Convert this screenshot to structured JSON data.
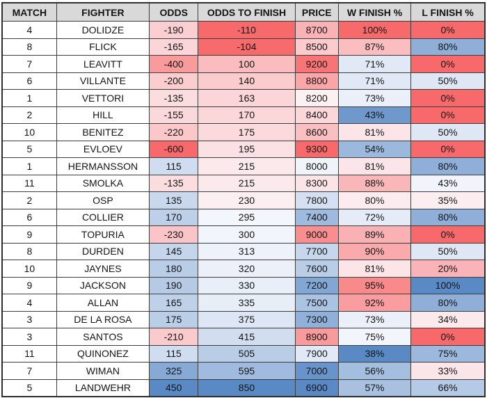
{
  "colors": {
    "header_bg": "#D9D9D9",
    "grid_border": "#3C3C3C",
    "text": "#141414",
    "page_bg": "#FFFFFF"
  },
  "chart_data": {
    "type": "table",
    "title": "",
    "columns": [
      {
        "key": "match",
        "label": "MATCH"
      },
      {
        "key": "fighter",
        "label": "FIGHTER"
      },
      {
        "key": "odds",
        "label": "ODDS"
      },
      {
        "key": "odds_to_finish",
        "label": "ODDS TO FINISH"
      },
      {
        "key": "price",
        "label": "PRICE"
      },
      {
        "key": "w_finish_pct",
        "label": "W FINISH %"
      },
      {
        "key": "l_finish_pct",
        "label": "L FINISH %"
      }
    ],
    "rows": [
      {
        "match": "4",
        "fighter": "DOLIDZE",
        "odds": "-190",
        "odds_to_finish": "-110",
        "price": "8700",
        "w_finish_pct": "100%",
        "l_finish_pct": "0%"
      },
      {
        "match": "8",
        "fighter": "FLICK",
        "odds": "-165",
        "odds_to_finish": "-104",
        "price": "8500",
        "w_finish_pct": "87%",
        "l_finish_pct": "80%"
      },
      {
        "match": "7",
        "fighter": "LEAVITT",
        "odds": "-400",
        "odds_to_finish": "100",
        "price": "9200",
        "w_finish_pct": "71%",
        "l_finish_pct": "0%"
      },
      {
        "match": "6",
        "fighter": "VILLANTE",
        "odds": "-200",
        "odds_to_finish": "140",
        "price": "8800",
        "w_finish_pct": "71%",
        "l_finish_pct": "50%"
      },
      {
        "match": "1",
        "fighter": "VETTORI",
        "odds": "-135",
        "odds_to_finish": "163",
        "price": "8200",
        "w_finish_pct": "73%",
        "l_finish_pct": "0%"
      },
      {
        "match": "2",
        "fighter": "HILL",
        "odds": "-155",
        "odds_to_finish": "170",
        "price": "8400",
        "w_finish_pct": "43%",
        "l_finish_pct": "0%"
      },
      {
        "match": "10",
        "fighter": "BENITEZ",
        "odds": "-220",
        "odds_to_finish": "175",
        "price": "8600",
        "w_finish_pct": "81%",
        "l_finish_pct": "50%"
      },
      {
        "match": "5",
        "fighter": "EVLOEV",
        "odds": "-600",
        "odds_to_finish": "195",
        "price": "9300",
        "w_finish_pct": "54%",
        "l_finish_pct": "0%"
      },
      {
        "match": "1",
        "fighter": "HERMANSSON",
        "odds": "115",
        "odds_to_finish": "215",
        "price": "8000",
        "w_finish_pct": "81%",
        "l_finish_pct": "80%"
      },
      {
        "match": "11",
        "fighter": "SMOLKA",
        "odds": "-135",
        "odds_to_finish": "215",
        "price": "8300",
        "w_finish_pct": "88%",
        "l_finish_pct": "43%"
      },
      {
        "match": "2",
        "fighter": "OSP",
        "odds": "135",
        "odds_to_finish": "230",
        "price": "7800",
        "w_finish_pct": "80%",
        "l_finish_pct": "35%"
      },
      {
        "match": "6",
        "fighter": "COLLIER",
        "odds": "170",
        "odds_to_finish": "295",
        "price": "7400",
        "w_finish_pct": "72%",
        "l_finish_pct": "80%"
      },
      {
        "match": "9",
        "fighter": "TOPURIA",
        "odds": "-230",
        "odds_to_finish": "300",
        "price": "9000",
        "w_finish_pct": "89%",
        "l_finish_pct": "0%"
      },
      {
        "match": "8",
        "fighter": "DURDEN",
        "odds": "145",
        "odds_to_finish": "313",
        "price": "7700",
        "w_finish_pct": "90%",
        "l_finish_pct": "50%"
      },
      {
        "match": "10",
        "fighter": "JAYNES",
        "odds": "180",
        "odds_to_finish": "320",
        "price": "7600",
        "w_finish_pct": "81%",
        "l_finish_pct": "20%"
      },
      {
        "match": "9",
        "fighter": "JACKSON",
        "odds": "190",
        "odds_to_finish": "330",
        "price": "7200",
        "w_finish_pct": "95%",
        "l_finish_pct": "100%"
      },
      {
        "match": "4",
        "fighter": "ALLAN",
        "odds": "165",
        "odds_to_finish": "335",
        "price": "7500",
        "w_finish_pct": "92%",
        "l_finish_pct": "80%"
      },
      {
        "match": "3",
        "fighter": "DE LA ROSA",
        "odds": "175",
        "odds_to_finish": "375",
        "price": "7300",
        "w_finish_pct": "73%",
        "l_finish_pct": "34%"
      },
      {
        "match": "3",
        "fighter": "SANTOS",
        "odds": "-210",
        "odds_to_finish": "415",
        "price": "8900",
        "w_finish_pct": "75%",
        "l_finish_pct": "0%"
      },
      {
        "match": "11",
        "fighter": "QUINONEZ",
        "odds": "115",
        "odds_to_finish": "505",
        "price": "7900",
        "w_finish_pct": "38%",
        "l_finish_pct": "75%"
      },
      {
        "match": "7",
        "fighter": "WIMAN",
        "odds": "325",
        "odds_to_finish": "595",
        "price": "7000",
        "w_finish_pct": "56%",
        "l_finish_pct": "33%"
      },
      {
        "match": "5",
        "fighter": "LANDWEHR",
        "odds": "450",
        "odds_to_finish": "850",
        "price": "6900",
        "w_finish_pct": "57%",
        "l_finish_pct": "66%"
      }
    ],
    "heatmap": {
      "low_color": "#F8696B",
      "mid_color": "#FCFCFF",
      "high_color": "#5A8AC6",
      "midpoint": "50th-percentile",
      "columns": [
        {
          "key": "odds",
          "direction": "min-red-max-blue"
        },
        {
          "key": "odds_to_finish",
          "direction": "min-red-max-blue"
        },
        {
          "key": "price",
          "direction": "min-blue-max-red"
        },
        {
          "key": "w_finish_pct",
          "direction": "min-blue-max-red"
        },
        {
          "key": "l_finish_pct",
          "direction": "min-red-max-blue"
        }
      ]
    }
  }
}
